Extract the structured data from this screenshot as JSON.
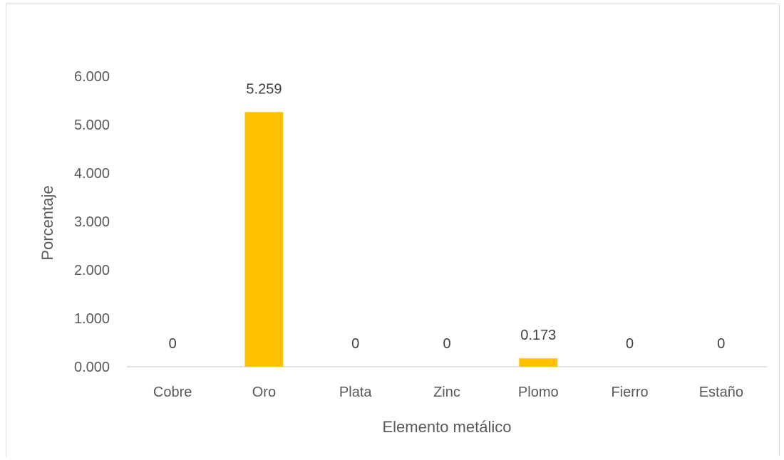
{
  "chart_data": {
    "type": "bar",
    "title": "",
    "xlabel": "Elemento metálico",
    "ylabel": "Porcentaje",
    "categories": [
      "Cobre",
      "Oro",
      "Plata",
      "Zinc",
      "Plomo",
      "Fierro",
      "Estaño"
    ],
    "values": [
      0,
      5.259,
      0,
      0,
      0.173,
      0,
      0
    ],
    "data_labels": [
      "0",
      "5.259",
      "0",
      "0",
      "0.173",
      "0",
      "0"
    ],
    "ylim": [
      0,
      6
    ],
    "yticks": [
      0,
      1,
      2,
      3,
      4,
      5,
      6
    ],
    "ytick_labels": [
      "0.000",
      "1.000",
      "2.000",
      "3.000",
      "4.000",
      "5.000",
      "6.000"
    ],
    "grid": false,
    "legend": "none",
    "bar_color": "#FFC000",
    "axis_color": "#D9D9D9"
  }
}
